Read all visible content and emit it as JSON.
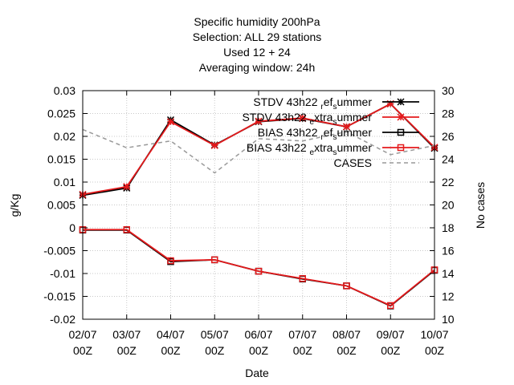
{
  "chart_data": {
    "type": "line",
    "title_lines": [
      "Specific humidity 200hPa",
      "Selection: ALL      29 stations",
      "Used  12  + 24",
      "Averaging window: 24h"
    ],
    "xlabel": "Date",
    "ylabel": "g/Kg",
    "y2label": "No cases",
    "categories": [
      {
        "date": "02/07",
        "time": "00Z"
      },
      {
        "date": "03/07",
        "time": "00Z"
      },
      {
        "date": "04/07",
        "time": "00Z"
      },
      {
        "date": "05/07",
        "time": "00Z"
      },
      {
        "date": "06/07",
        "time": "00Z"
      },
      {
        "date": "07/07",
        "time": "00Z"
      },
      {
        "date": "08/07",
        "time": "00Z"
      },
      {
        "date": "09/07",
        "time": "00Z"
      },
      {
        "date": "10/07",
        "time": "00Z"
      }
    ],
    "ylim": [
      -0.02,
      0.03
    ],
    "y_ticks": [
      "0.03",
      "0.025",
      "0.02",
      "0.015",
      "0.01",
      "0.005",
      "0",
      "-0.005",
      "-0.01",
      "-0.015",
      "-0.02"
    ],
    "y2lim": [
      10,
      30
    ],
    "y2_ticks": [
      "30",
      "28",
      "26",
      "24",
      "22",
      "20",
      "18",
      "16",
      "14",
      "12",
      "10"
    ],
    "grid": true,
    "legend_position": "top-right",
    "series": [
      {
        "legend": {
          "main": "STDV 43h22",
          "sub1": "r",
          "mid": "ef",
          "sub2": "s",
          "tail": "ummer"
        },
        "color": "#000000",
        "marker": "star",
        "axis": "y1",
        "values": [
          0.0071,
          0.0087,
          0.0236,
          0.0181,
          0.0232,
          0.0239,
          0.0221,
          0.0271,
          0.0174
        ]
      },
      {
        "legend": {
          "main": "STDV 43h22",
          "sub1": "e",
          "mid": "xtra",
          "sub2": "s",
          "tail": "ummer"
        },
        "color": "#e41a1c",
        "marker": "star",
        "axis": "y1",
        "values": [
          0.0073,
          0.009,
          0.0232,
          0.018,
          0.0233,
          0.024,
          0.0221,
          0.0271,
          0.0176
        ]
      },
      {
        "legend": {
          "main": "BIAS 43h22",
          "sub1": "r",
          "mid": "ef",
          "sub2": "s",
          "tail": "ummer"
        },
        "color": "#000000",
        "marker": "square",
        "axis": "y1",
        "values": [
          -0.0005,
          -0.0005,
          -0.0074,
          -0.007,
          -0.0095,
          -0.0112,
          -0.0127,
          -0.0171,
          -0.0093
        ]
      },
      {
        "legend": {
          "main": "BIAS 43h22",
          "sub1": "e",
          "mid": "xtra",
          "sub2": "s",
          "tail": "ummer"
        },
        "color": "#e41a1c",
        "marker": "square",
        "axis": "y1",
        "values": [
          -0.0004,
          -0.0004,
          -0.0072,
          -0.007,
          -0.0095,
          -0.0111,
          -0.0127,
          -0.017,
          -0.0092
        ]
      },
      {
        "legend": {
          "main": "CASES",
          "sub1": "",
          "mid": "",
          "sub2": "",
          "tail": ""
        },
        "color": "#999999",
        "marker": "none",
        "dashed": true,
        "axis": "y2",
        "values": [
          26.6,
          25.0,
          25.6,
          22.8,
          25.8,
          25.6,
          26.4,
          24.4,
          25.2
        ]
      }
    ]
  }
}
